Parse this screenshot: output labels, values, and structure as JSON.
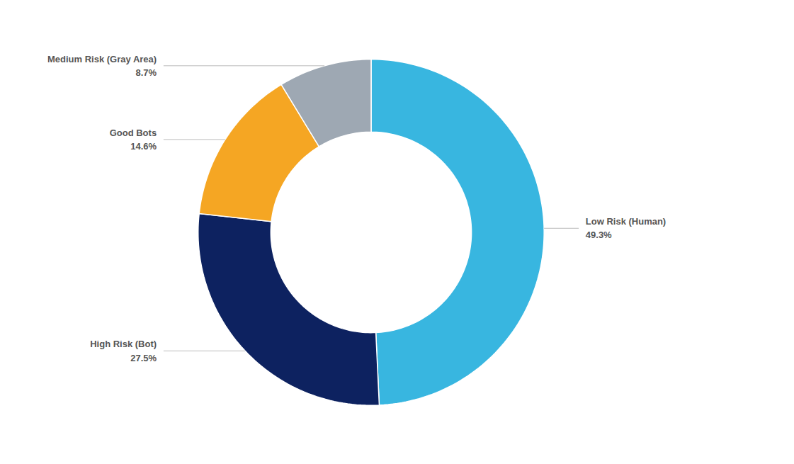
{
  "chart_data": {
    "type": "pie",
    "categories": [
      "Low Risk (Human)",
      "High Risk (Bot)",
      "Good Bots",
      "Medium Risk (Gray Area)"
    ],
    "values": [
      49.3,
      27.5,
      14.6,
      8.7
    ],
    "value_labels": [
      "49.3%",
      "27.5%",
      "14.6%",
      "8.7%"
    ],
    "colors": [
      "#38b6e0",
      "#0d2260",
      "#f5a623",
      "#9ea8b3"
    ],
    "data_labels": true
  }
}
